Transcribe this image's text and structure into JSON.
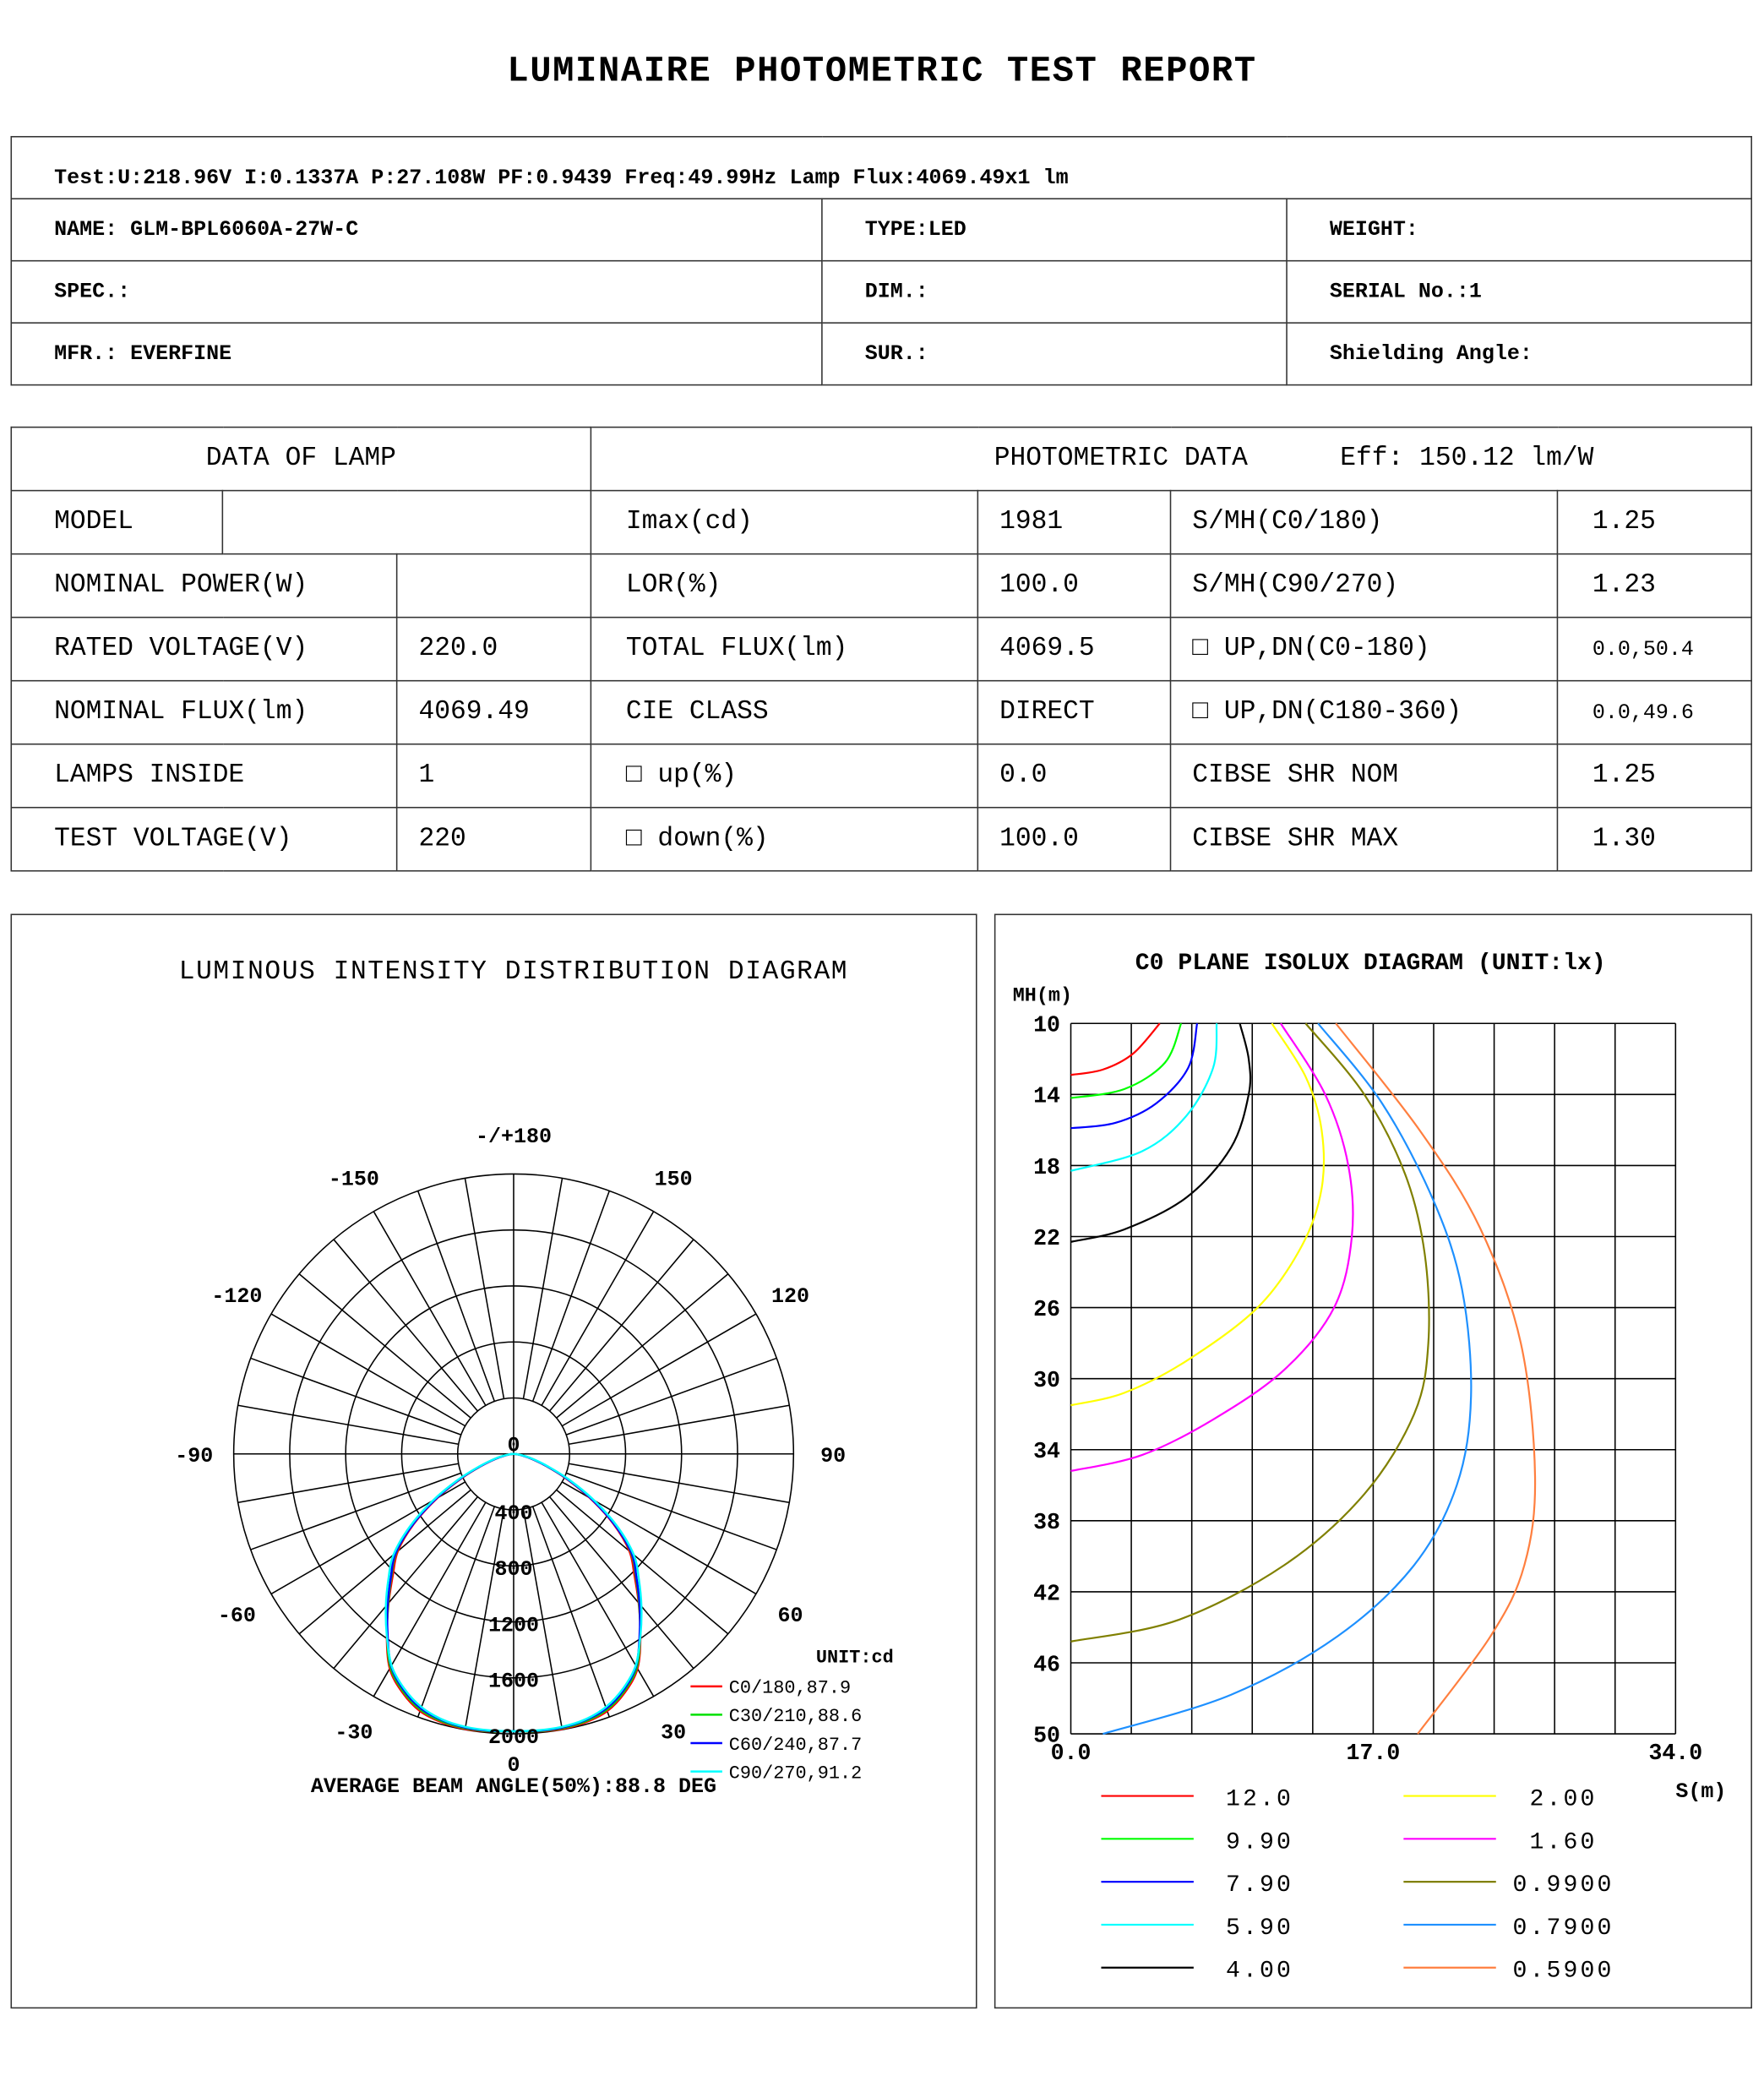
{
  "title": "LUMINAIRE PHOTOMETRIC TEST REPORT",
  "test_line": "Test:U:218.96V I:0.1337A P:27.108W PF:0.9439 Freq:49.99Hz  Lamp Flux:4069.49x1 lm",
  "info": {
    "name": "NAME: GLM-BPL6060A-27W-C",
    "type": "TYPE:LED",
    "weight": "WEIGHT:",
    "spec": "SPEC.:",
    "dim": "DIM.:",
    "serial": "SERIAL No.:1",
    "mfr": "MFR.: EVERFINE",
    "sur": "SUR.:",
    "shielding": "Shielding Angle:"
  },
  "lamp": {
    "header": "DATA OF LAMP",
    "model_label": "MODEL",
    "model_value": "",
    "rows": [
      {
        "label": "NOMINAL POWER(W)",
        "value": ""
      },
      {
        "label": "RATED VOLTAGE(V)",
        "value": "220.0"
      },
      {
        "label": "NOMINAL FLUX(lm)",
        "value": "4069.49"
      },
      {
        "label": "LAMPS INSIDE",
        "value": "1"
      },
      {
        "label": "TEST VOLTAGE(V)",
        "value": "220"
      }
    ]
  },
  "photometric": {
    "header": "PHOTOMETRIC DATA",
    "eff": "Eff: 150.12 lm/W",
    "rows": [
      {
        "l1": "Imax(cd)",
        "v1": "1981",
        "l2": "S/MH(C0/180)",
        "v2": "1.25"
      },
      {
        "l1": "LOR(%)",
        "v1": "100.0",
        "l2": "S/MH(C90/270)",
        "v2": "1.23"
      },
      {
        "l1": "TOTAL FLUX(lm)",
        "v1": "4069.5",
        "l2": "□ UP,DN(C0-180)",
        "v2": "0.0,50.4"
      },
      {
        "l1": "CIE CLASS",
        "v1": "DIRECT",
        "l2": "□ UP,DN(C180-360)",
        "v2": "0.0,49.6"
      },
      {
        "l1": "□ up(%)",
        "v1": "0.0",
        "l2": "CIBSE SHR NOM",
        "v2": "1.25"
      },
      {
        "l1": "□ down(%)",
        "v1": "100.0",
        "l2": "CIBSE SHR MAX",
        "v2": "1.30"
      }
    ]
  },
  "chart_data": [
    {
      "type": "polar",
      "title": "LUMINOUS INTENSITY DISTRIBUTION DIAGRAM",
      "angle_labels": [
        "-/+180",
        "150",
        "120",
        "90",
        "60",
        "30",
        "0",
        "-30",
        "-60",
        "-90",
        "-120",
        "-150"
      ],
      "angle_label_values": [
        180,
        150,
        120,
        90,
        60,
        30,
        0,
        -30,
        -60,
        -90,
        -120,
        -150
      ],
      "radial_ticks": [
        "0",
        "400",
        "800",
        "1200",
        "1600",
        "2000"
      ],
      "rmax": 2000,
      "unit": "UNIT:cd",
      "beam_angle": "AVERAGE BEAM ANGLE(50%):88.8 DEG",
      "gamma": [
        0,
        5,
        10,
        15,
        20,
        25,
        30,
        35,
        40,
        45,
        50,
        55,
        60,
        65,
        70,
        75,
        80,
        85,
        90
      ],
      "series": [
        {
          "name": "C0/180,87.9",
          "color": "#ff0000",
          "values": [
            1981,
            1990,
            1995,
            1985,
            1955,
            1880,
            1770,
            1580,
            1390,
            1220,
            1080,
            870,
            630,
            410,
            240,
            130,
            60,
            20,
            0
          ]
        },
        {
          "name": "C30/210,88.6",
          "color": "#00e000",
          "values": [
            1981,
            1988,
            1990,
            1978,
            1945,
            1870,
            1760,
            1575,
            1395,
            1235,
            1095,
            885,
            650,
            425,
            250,
            140,
            65,
            22,
            0
          ]
        },
        {
          "name": "C60/240,87.7",
          "color": "#0000ff",
          "values": [
            1981,
            1985,
            1985,
            1970,
            1935,
            1860,
            1750,
            1570,
            1400,
            1240,
            1100,
            880,
            640,
            420,
            245,
            135,
            62,
            20,
            0
          ]
        },
        {
          "name": "C90/270,91.2",
          "color": "#00ffff",
          "values": [
            1981,
            1982,
            1980,
            1965,
            1925,
            1850,
            1745,
            1580,
            1420,
            1265,
            1120,
            905,
            665,
            440,
            260,
            145,
            68,
            24,
            0
          ]
        }
      ]
    },
    {
      "type": "line",
      "title": "C0 PLANE ISOLUX DIAGRAM (UNIT:lx)",
      "ylabel": "MH(m)",
      "xlabel": "S(m)",
      "xlim": [
        0,
        34
      ],
      "ylim": [
        10,
        50
      ],
      "y_inverted": true,
      "grid": true,
      "xticks": [
        "0.0",
        "17.0",
        "34.0"
      ],
      "xtick_values": [
        0,
        17,
        34
      ],
      "yticks": [
        "10",
        "14",
        "18",
        "22",
        "26",
        "30",
        "34",
        "38",
        "42",
        "46",
        "50"
      ],
      "series": [
        {
          "name": "12.0",
          "color": "#ff0000",
          "points": [
            [
              5.0,
              10
            ],
            [
              3.5,
              11.7
            ],
            [
              1.8,
              12.6
            ],
            [
              0,
              12.9
            ]
          ]
        },
        {
          "name": "9.90",
          "color": "#00ff00",
          "points": [
            [
              6.2,
              10
            ],
            [
              5.3,
              12.2
            ],
            [
              3.0,
              13.7
            ],
            [
              0,
              14.2
            ]
          ]
        },
        {
          "name": "7.90",
          "color": "#0000ff",
          "points": [
            [
              7.1,
              10
            ],
            [
              6.6,
              12.5
            ],
            [
              4.8,
              14.5
            ],
            [
              2.5,
              15.6
            ],
            [
              0,
              15.9
            ]
          ]
        },
        {
          "name": "5.90",
          "color": "#00ffff",
          "points": [
            [
              8.2,
              10
            ],
            [
              8.0,
              12.5
            ],
            [
              6.5,
              15.2
            ],
            [
              4.0,
              17.2
            ],
            [
              0,
              18.3
            ]
          ]
        },
        {
          "name": "4.00",
          "color": "#000000",
          "points": [
            [
              9.5,
              10
            ],
            [
              10.0,
              12
            ],
            [
              10.0,
              14
            ],
            [
              9.0,
              17
            ],
            [
              6.5,
              19.8
            ],
            [
              3.0,
              21.6
            ],
            [
              0,
              22.3
            ]
          ]
        },
        {
          "name": "2.00",
          "color": "#ffff00",
          "points": [
            [
              11.3,
              10
            ],
            [
              13.2,
              13
            ],
            [
              14.1,
              16
            ],
            [
              14.1,
              19.3
            ],
            [
              13.0,
              22.5
            ],
            [
              10.5,
              26
            ],
            [
              6.5,
              29
            ],
            [
              3.0,
              30.8
            ],
            [
              0,
              31.5
            ]
          ]
        },
        {
          "name": "1.60",
          "color": "#ff00ff",
          "points": [
            [
              11.8,
              10
            ],
            [
              14.3,
              14
            ],
            [
              15.6,
              18
            ],
            [
              15.8,
              22
            ],
            [
              14.8,
              26
            ],
            [
              12.0,
              29.5
            ],
            [
              8.0,
              32.3
            ],
            [
              4.0,
              34.3
            ],
            [
              0,
              35.2
            ]
          ]
        },
        {
          "name": "0.9900",
          "color": "#808000",
          "points": [
            [
              13.2,
              10
            ],
            [
              16.5,
              14
            ],
            [
              18.8,
              18.5
            ],
            [
              19.9,
              23
            ],
            [
              20.1,
              28
            ],
            [
              19.3,
              32
            ],
            [
              16.5,
              36.5
            ],
            [
              12.0,
              40.5
            ],
            [
              6.0,
              43.6
            ],
            [
              0,
              44.8
            ]
          ]
        },
        {
          "name": "0.7900",
          "color": "#1e90ff",
          "points": [
            [
              13.9,
              10
            ],
            [
              17.5,
              14.5
            ],
            [
              20.4,
              20
            ],
            [
              22.0,
              25
            ],
            [
              22.5,
              31
            ],
            [
              21.7,
              36
            ],
            [
              19.3,
              40.5
            ],
            [
              15.0,
              44.5
            ],
            [
              9.0,
              47.8
            ],
            [
              1.8,
              50
            ]
          ]
        },
        {
          "name": "0.5900",
          "color": "#ff7f3f",
          "points": [
            [
              14.9,
              10
            ],
            [
              19.6,
              16
            ],
            [
              23.0,
              21.5
            ],
            [
              25.3,
              28
            ],
            [
              26.1,
              35.5
            ],
            [
              25.5,
              40.5
            ],
            [
              23.6,
              44.5
            ],
            [
              19.5,
              50
            ]
          ]
        }
      ]
    }
  ]
}
